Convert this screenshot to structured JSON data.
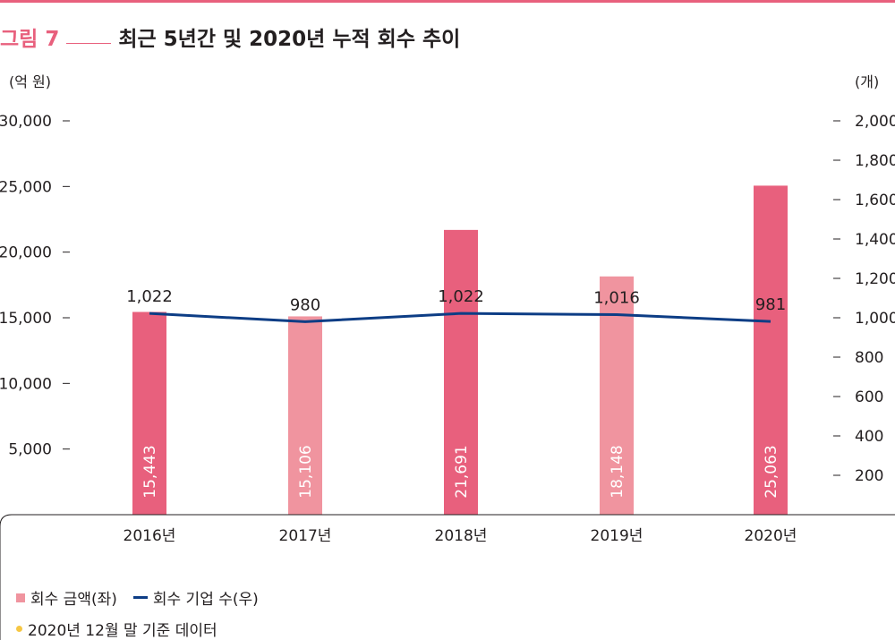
{
  "header": {
    "figure_label": "그림 7",
    "title": "최근 5년간 및 2020년 누적 회수 추이"
  },
  "units": {
    "left": "(억 원)",
    "right": "(개)"
  },
  "legend": {
    "bar_label": "회수 금액(좌)",
    "line_label": "회수 기업 수(우)"
  },
  "note": "2020년 12월 말 기준 데이터",
  "colors": {
    "accent": "#e8607d",
    "bar_dark": "#e8607d",
    "bar_light": "#f0949f",
    "line": "#0d3d85",
    "note_dot": "#f6c744"
  },
  "chart_data": {
    "type": "bar",
    "categories": [
      "2016년",
      "2017년",
      "2018년",
      "2019년",
      "2020년"
    ],
    "bar_labels": [
      "15,443",
      "15,106",
      "21,691",
      "18,148",
      "25,063"
    ],
    "line_labels": [
      "1,022",
      "980",
      "1,022",
      "1,016",
      "981"
    ],
    "series": [
      {
        "name": "회수 금액(좌)",
        "axis": "left",
        "kind": "bar",
        "values": [
          15443,
          15106,
          21691,
          18148,
          25063
        ]
      },
      {
        "name": "회수 기업 수(우)",
        "axis": "right",
        "kind": "line",
        "values": [
          1022,
          980,
          1022,
          1016,
          981
        ]
      }
    ],
    "y_left": {
      "lim": [
        0,
        30000
      ],
      "ticks": [
        5000,
        10000,
        15000,
        20000,
        25000,
        30000
      ],
      "tick_labels": [
        "5,000",
        "10,000",
        "15,000",
        "20,000",
        "25,000",
        "30,000"
      ]
    },
    "y_right": {
      "lim": [
        0,
        2000
      ],
      "ticks": [
        200,
        400,
        600,
        800,
        1000,
        1200,
        1400,
        1600,
        1800,
        2000
      ],
      "tick_labels": [
        "200",
        "400",
        "600",
        "800",
        "1,000",
        "1,200",
        "1,400",
        "1,600",
        "1,800",
        "2,000"
      ]
    },
    "grid": false,
    "legend_position": "bottom-left"
  }
}
